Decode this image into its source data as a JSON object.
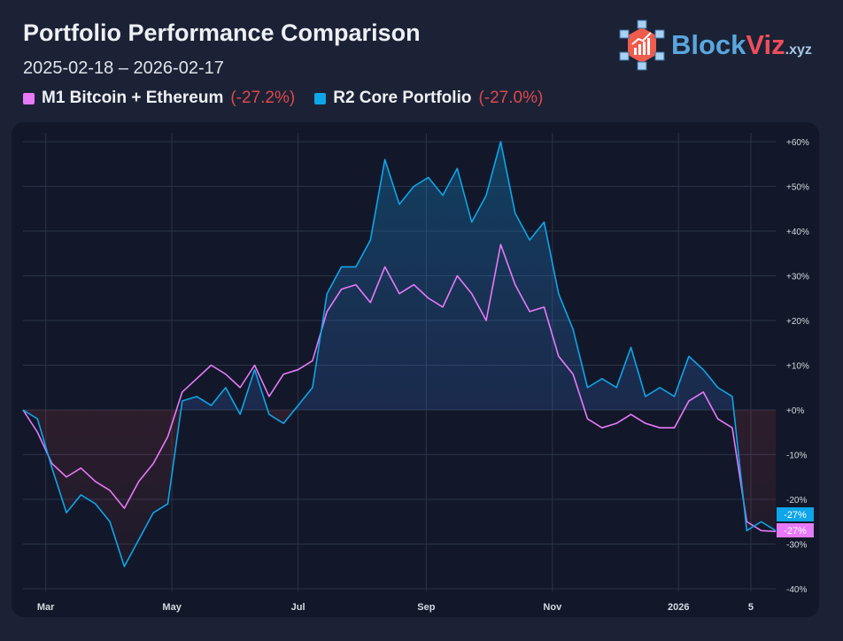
{
  "header": {
    "title": "Portfolio Performance Comparison",
    "date_range": "2025-02-18 – 2026-02-17"
  },
  "logo": {
    "text_main": "Block",
    "text_accent": "Viz",
    "text_suffix": ".xyz"
  },
  "legend": [
    {
      "name": "M1 Bitcoin + Ethereum",
      "value": "(-27.2%)",
      "color": "#e879f9"
    },
    {
      "name": "R2 Core Portfolio",
      "value": "(-27.0%)",
      "color": "#0ea5e9"
    }
  ],
  "chart_data": {
    "type": "line",
    "ylim": [
      -40,
      60
    ],
    "y_ticks": [
      "+60%",
      "+50%",
      "+40%",
      "+30%",
      "+20%",
      "+10%",
      "+0%",
      "-10%",
      "-20%",
      "-30%",
      "-40%"
    ],
    "y_tick_values": [
      60,
      50,
      40,
      30,
      20,
      10,
      0,
      -10,
      -20,
      -30,
      -40
    ],
    "x_ticks": [
      {
        "label": "Mar",
        "date": "2025-03-01"
      },
      {
        "label": "May",
        "date": "2025-05-01"
      },
      {
        "label": "Jul",
        "date": "2025-07-01"
      },
      {
        "label": "Sep",
        "date": "2025-09-01"
      },
      {
        "label": "Nov",
        "date": "2025-11-01"
      },
      {
        "label": "2026",
        "date": "2026-01-01"
      },
      {
        "label": "5",
        "date": "2026-02-05"
      }
    ],
    "grid": true,
    "end_labels": [
      {
        "text": "-27%",
        "color": "#0ea5e9"
      },
      {
        "text": "-27%",
        "color": "#e879f9"
      }
    ],
    "dates": [
      "2025-02-18",
      "2025-02-25",
      "2025-03-04",
      "2025-03-11",
      "2025-03-18",
      "2025-03-25",
      "2025-04-01",
      "2025-04-08",
      "2025-04-15",
      "2025-04-22",
      "2025-04-29",
      "2025-05-06",
      "2025-05-13",
      "2025-05-20",
      "2025-05-27",
      "2025-06-03",
      "2025-06-10",
      "2025-06-17",
      "2025-06-24",
      "2025-07-01",
      "2025-07-08",
      "2025-07-15",
      "2025-07-22",
      "2025-07-29",
      "2025-08-05",
      "2025-08-12",
      "2025-08-19",
      "2025-08-26",
      "2025-09-02",
      "2025-09-09",
      "2025-09-16",
      "2025-09-23",
      "2025-09-30",
      "2025-10-07",
      "2025-10-14",
      "2025-10-21",
      "2025-10-28",
      "2025-11-04",
      "2025-11-11",
      "2025-11-18",
      "2025-11-25",
      "2025-12-02",
      "2025-12-09",
      "2025-12-16",
      "2025-12-23",
      "2025-12-30",
      "2026-01-06",
      "2026-01-13",
      "2026-01-20",
      "2026-01-27",
      "2026-02-03",
      "2026-02-10",
      "2026-02-17"
    ],
    "series": [
      {
        "name": "M1 Bitcoin + Ethereum",
        "color": "#e879f9",
        "values": [
          0,
          -5,
          -12,
          -15,
          -13,
          -16,
          -18,
          -22,
          -16,
          -12,
          -6,
          4,
          7,
          10,
          8,
          5,
          10,
          3,
          8,
          9,
          11,
          22,
          27,
          28,
          24,
          32,
          26,
          28,
          25,
          23,
          30,
          26,
          20,
          37,
          28,
          22,
          23,
          12,
          8,
          -2,
          -4,
          -3,
          -1,
          -3,
          -4,
          -4,
          2,
          4,
          -2,
          -4,
          -25,
          -27,
          -27.2
        ]
      },
      {
        "name": "R2 Core Portfolio",
        "color": "#0ea5e9",
        "values": [
          0,
          -2,
          -13,
          -23,
          -19,
          -21,
          -25,
          -35,
          -29,
          -23,
          -21,
          2,
          3,
          1,
          5,
          -1,
          9,
          -1,
          -3,
          1,
          5,
          26,
          32,
          32,
          38,
          56,
          46,
          50,
          52,
          48,
          54,
          42,
          48,
          60,
          44,
          38,
          42,
          26,
          18,
          5,
          7,
          5,
          14,
          3,
          5,
          3,
          12,
          9,
          5,
          3,
          -27,
          -25,
          -27.0
        ]
      }
    ]
  }
}
